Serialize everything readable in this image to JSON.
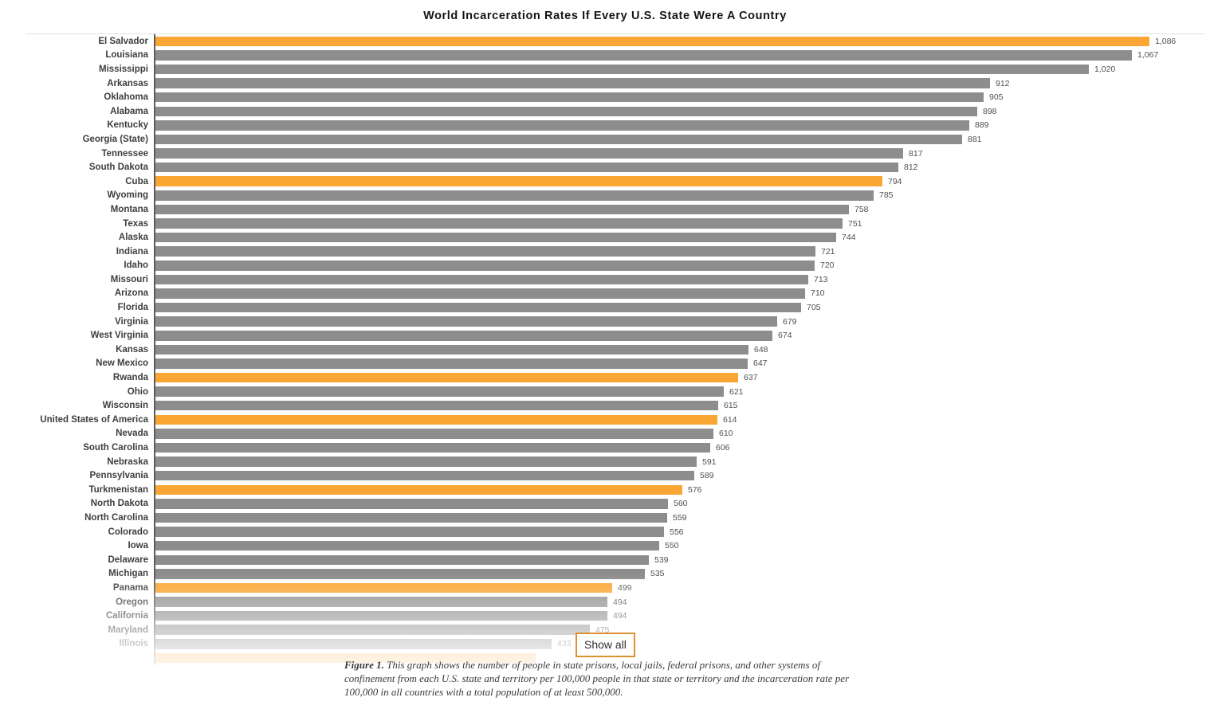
{
  "title": "World Incarceration Rates If Every U.S. State Were A Country",
  "colors": {
    "country_bar": "#FAA634",
    "state_bar": "#8D8D8D",
    "button_border": "#DD9130",
    "axis": "#5C5C5C",
    "top_rule": "#E0E0E0"
  },
  "chart_data": {
    "type": "bar",
    "orientation": "horizontal",
    "title": "World Incarceration Rates If Every U.S. State Were A Country",
    "xlabel": "",
    "ylabel": "",
    "xlim": [
      0,
      1086
    ],
    "grid": false,
    "legend": "none",
    "highlight_rule": "countries are orange, U.S. states are gray; bottom rows fade out behind Show all control",
    "items": [
      {
        "label": "El Salvador",
        "value": 1086,
        "display": "1,086",
        "kind": "country"
      },
      {
        "label": "Louisiana",
        "value": 1067,
        "display": "1,067",
        "kind": "state"
      },
      {
        "label": "Mississippi",
        "value": 1020,
        "display": "1,020",
        "kind": "state"
      },
      {
        "label": "Arkansas",
        "value": 912,
        "display": "912",
        "kind": "state"
      },
      {
        "label": "Oklahoma",
        "value": 905,
        "display": "905",
        "kind": "state"
      },
      {
        "label": "Alabama",
        "value": 898,
        "display": "898",
        "kind": "state"
      },
      {
        "label": "Kentucky",
        "value": 889,
        "display": "889",
        "kind": "state"
      },
      {
        "label": "Georgia (State)",
        "value": 881,
        "display": "881",
        "kind": "state"
      },
      {
        "label": "Tennessee",
        "value": 817,
        "display": "817",
        "kind": "state"
      },
      {
        "label": "South Dakota",
        "value": 812,
        "display": "812",
        "kind": "state"
      },
      {
        "label": "Cuba",
        "value": 794,
        "display": "794",
        "kind": "country"
      },
      {
        "label": "Wyoming",
        "value": 785,
        "display": "785",
        "kind": "state"
      },
      {
        "label": "Montana",
        "value": 758,
        "display": "758",
        "kind": "state"
      },
      {
        "label": "Texas",
        "value": 751,
        "display": "751",
        "kind": "state"
      },
      {
        "label": "Alaska",
        "value": 744,
        "display": "744",
        "kind": "state"
      },
      {
        "label": "Indiana",
        "value": 721,
        "display": "721",
        "kind": "state"
      },
      {
        "label": "Idaho",
        "value": 720,
        "display": "720",
        "kind": "state"
      },
      {
        "label": "Missouri",
        "value": 713,
        "display": "713",
        "kind": "state"
      },
      {
        "label": "Arizona",
        "value": 710,
        "display": "710",
        "kind": "state"
      },
      {
        "label": "Florida",
        "value": 705,
        "display": "705",
        "kind": "state"
      },
      {
        "label": "Virginia",
        "value": 679,
        "display": "679",
        "kind": "state"
      },
      {
        "label": "West Virginia",
        "value": 674,
        "display": "674",
        "kind": "state"
      },
      {
        "label": "Kansas",
        "value": 648,
        "display": "648",
        "kind": "state"
      },
      {
        "label": "New Mexico",
        "value": 647,
        "display": "647",
        "kind": "state"
      },
      {
        "label": "Rwanda",
        "value": 637,
        "display": "637",
        "kind": "country"
      },
      {
        "label": "Ohio",
        "value": 621,
        "display": "621",
        "kind": "state"
      },
      {
        "label": "Wisconsin",
        "value": 615,
        "display": "615",
        "kind": "state"
      },
      {
        "label": "United States of America",
        "value": 614,
        "display": "614",
        "kind": "country"
      },
      {
        "label": "Nevada",
        "value": 610,
        "display": "610",
        "kind": "state"
      },
      {
        "label": "South Carolina",
        "value": 606,
        "display": "606",
        "kind": "state"
      },
      {
        "label": "Nebraska",
        "value": 591,
        "display": "591",
        "kind": "state"
      },
      {
        "label": "Pennsylvania",
        "value": 589,
        "display": "589",
        "kind": "state"
      },
      {
        "label": "Turkmenistan",
        "value": 576,
        "display": "576",
        "kind": "country"
      },
      {
        "label": "North Dakota",
        "value": 560,
        "display": "560",
        "kind": "state"
      },
      {
        "label": "North Carolina",
        "value": 559,
        "display": "559",
        "kind": "state"
      },
      {
        "label": "Colorado",
        "value": 556,
        "display": "556",
        "kind": "state"
      },
      {
        "label": "Iowa",
        "value": 550,
        "display": "550",
        "kind": "state"
      },
      {
        "label": "Delaware",
        "value": 539,
        "display": "539",
        "kind": "state"
      },
      {
        "label": "Michigan",
        "value": 535,
        "display": "535",
        "kind": "state"
      },
      {
        "label": "Panama",
        "value": 499,
        "display": "499",
        "kind": "country"
      },
      {
        "label": "Oregon",
        "value": 494,
        "display": "494",
        "kind": "state"
      },
      {
        "label": "California",
        "value": 494,
        "display": "494",
        "kind": "state"
      },
      {
        "label": "Maryland",
        "value": 475,
        "display": "475",
        "kind": "state"
      },
      {
        "label": "Illinois",
        "value": 433,
        "display": "433",
        "kind": "state"
      },
      {
        "label": "",
        "value": 415,
        "display": "",
        "kind": "country",
        "partial": true
      }
    ]
  },
  "show_all_button": {
    "label": "Show all"
  },
  "caption": {
    "figure_label": "Figure 1.",
    "text": " This graph shows the number of people in state prisons, local jails, federal prisons, and other systems of confinement from each U.S. state and territory per 100,000 people in that state or territory and the incarceration rate per 100,000 in all countries with a total population of at least 500,000."
  }
}
